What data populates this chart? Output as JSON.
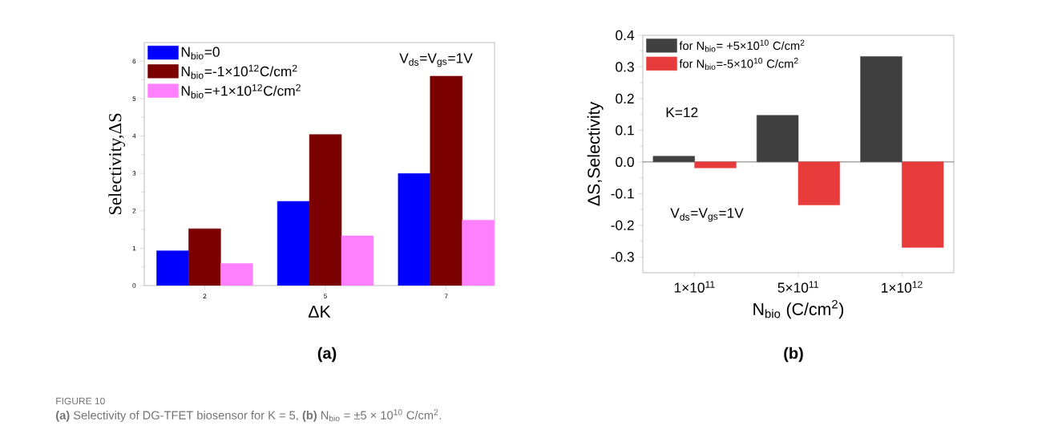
{
  "chart_data": [
    {
      "type": "bar",
      "title": "(a)",
      "xlabel": "ΔK",
      "ylabel": "Selectivity,ΔS",
      "categories": [
        "2",
        "5",
        "7"
      ],
      "series": [
        {
          "name": "N$_{bio}$=0",
          "color": "#0000ff",
          "values": [
            0.93,
            2.25,
            3.0
          ]
        },
        {
          "name": "N$_{bio}$=-1×10$^{12}$C/cm$^{2}$",
          "color": "#7b0000",
          "values": [
            1.52,
            4.04,
            5.6
          ]
        },
        {
          "name": "N$_{bio}$=+1×10$^{12}$C/cm$^{2}$",
          "color": "#ff80ff",
          "values": [
            0.59,
            1.33,
            1.75
          ]
        }
      ],
      "ylim": [
        0,
        6.5
      ],
      "yticks": [
        0,
        1,
        2,
        3,
        4,
        5,
        6
      ],
      "legend": "top left",
      "annotations": [
        "V$_{ds}$=V$_{gs}$=1V",
        "FIGURE 10",
        "**(a)** Selectivity of DG-TFET biosensor for K = 5, **(b)** N$_{bio}$ = ±5 × 10$^{10}$ C/cm$^{2}$."
      ]
    },
    {
      "type": "bar",
      "title": "(b)",
      "xlabel": "N$_{bio}$ (C/cm$^{2}$)",
      "ylabel": "ΔS,Selectivity",
      "categories": [
        "1×10$^{11}$",
        "5×10$^{11}$",
        "1×10$^{12}$"
      ],
      "series": [
        {
          "name": "for N$_{bio}$= +5×10$^{10}$ C/cm$^{2}$",
          "color": "#404040",
          "values": [
            0.018,
            0.147,
            0.333
          ]
        },
        {
          "name": "for N$_{bio}$=-5×10$^{10}$ C/cm$^{2}$",
          "color": "#e83c3c",
          "values": [
            -0.019,
            -0.136,
            -0.27
          ]
        }
      ],
      "ylim": [
        -0.35,
        0.4
      ],
      "yticks": [
        -0.3,
        -0.2,
        -0.1,
        {
          "value": 0,
          "label": "0.0"
        },
        0.1,
        0.2,
        0.3,
        0.4
      ],
      "legend": "top left",
      "annotations": [
        "K=12",
        "V$_{ds}$=V$_{gs}$=1V"
      ]
    }
  ]
}
